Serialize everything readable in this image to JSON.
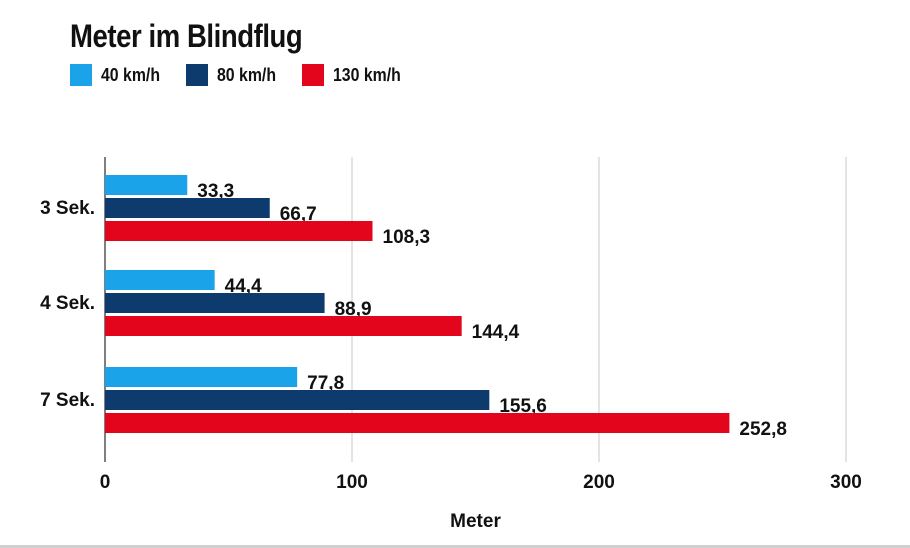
{
  "chart_data": {
    "type": "bar",
    "orientation": "horizontal",
    "title": "Meter im Blindflug",
    "xlabel": "Meter",
    "ylabel": "",
    "categories": [
      "3 Sek.",
      "4 Sek.",
      "7 Sek."
    ],
    "series": [
      {
        "name": "40 km/h",
        "color": "#1aa3e8",
        "values": [
          33.3,
          44.4,
          77.8
        ],
        "labels": [
          "33,3",
          "44,4",
          "77,8"
        ]
      },
      {
        "name": "80 km/h",
        "color": "#0d3b6e",
        "values": [
          66.7,
          88.9,
          155.6
        ],
        "labels": [
          "66,7",
          "88,9",
          "155,6"
        ]
      },
      {
        "name": "130 km/h",
        "color": "#e3051b",
        "values": [
          108.3,
          144.4,
          252.8
        ],
        "labels": [
          "108,3",
          "144,4",
          "252,8"
        ]
      }
    ],
    "xlim": [
      0,
      300
    ],
    "xticks": [
      0,
      100,
      200,
      300
    ],
    "xtick_labels": [
      "0",
      "100",
      "200",
      "300"
    ],
    "grid": true,
    "legend_position": "top-left"
  }
}
